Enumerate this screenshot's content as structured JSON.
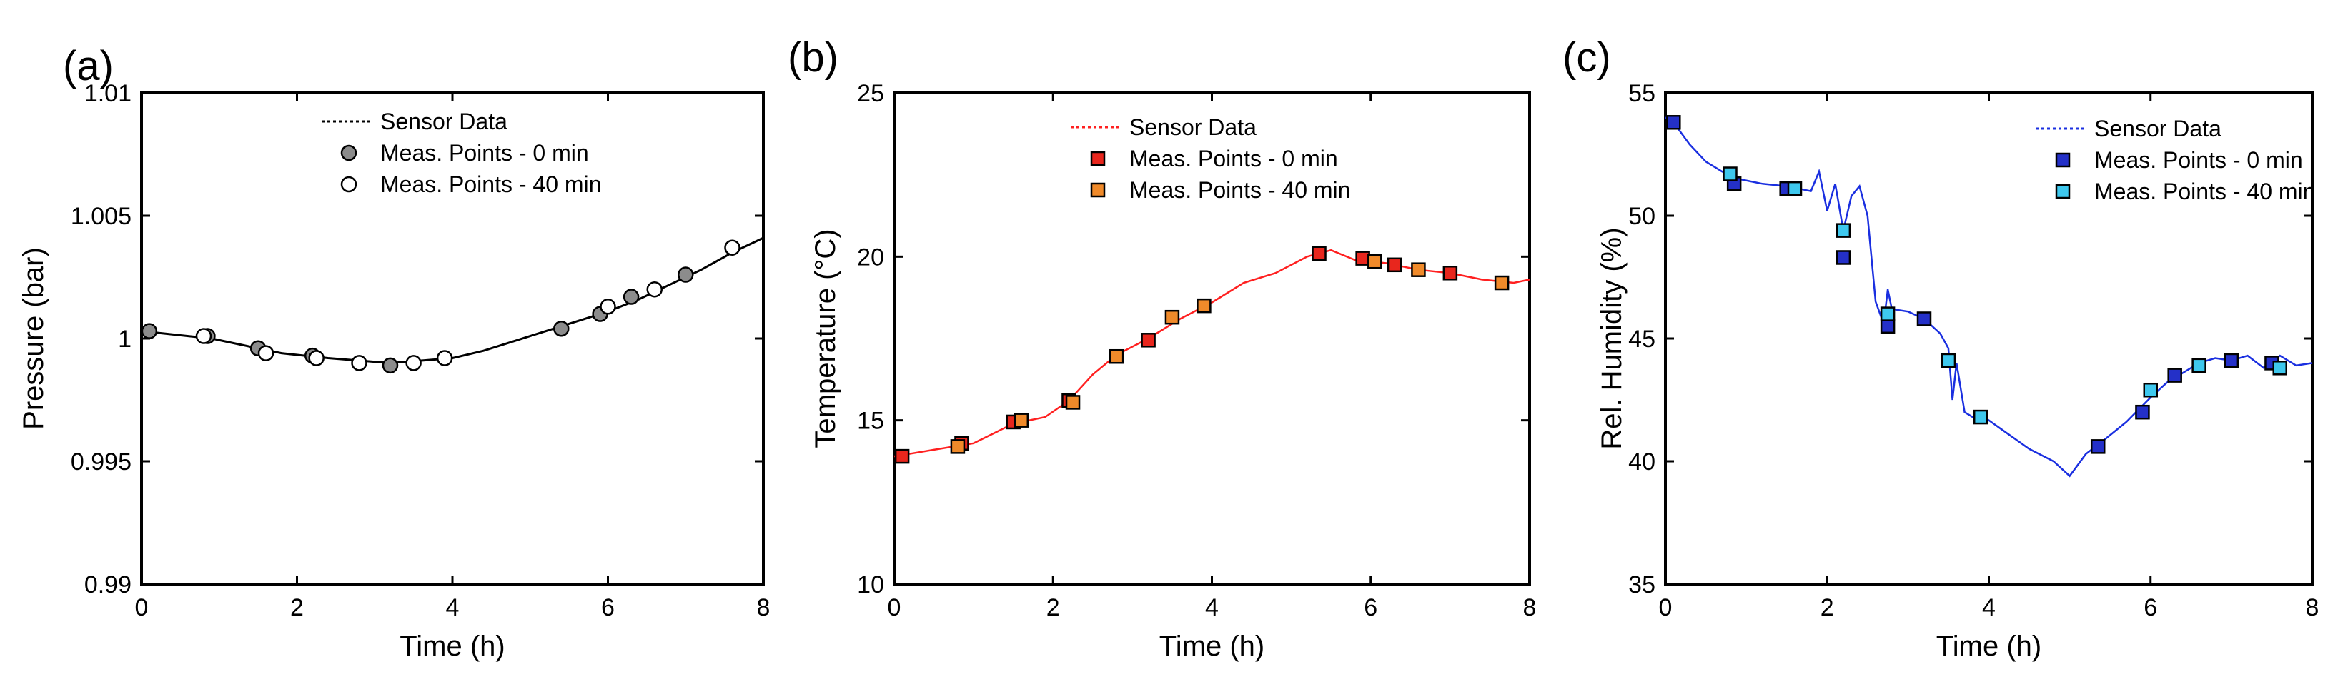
{
  "chart_data": [
    {
      "panel": "(a)",
      "type": "line+scatter",
      "xlabel": "Time (h)",
      "ylabel": "Pressure (bar)",
      "xlim": [
        0,
        8
      ],
      "ylim": [
        0.99,
        1.01
      ],
      "xticks": [
        "0",
        "2",
        "4",
        "6",
        "8"
      ],
      "yticks": [
        "0.99",
        "0.995",
        "1",
        "1.005",
        "1.01"
      ],
      "legend": [
        "Sensor Data",
        "Meas. Points - 0 min",
        "Meas. Points - 40 min"
      ],
      "colors": {
        "line": "#000000",
        "m0": "#8c8c8c",
        "m40": "#ffffff",
        "edge": "#000000"
      },
      "line": {
        "x": [
          -0.1,
          0,
          0.3,
          0.6,
          0.9,
          1.2,
          1.5,
          1.8,
          2.1,
          2.4,
          2.8,
          3.2,
          3.6,
          4.0,
          4.4,
          4.8,
          5.2,
          5.6,
          6.0,
          6.4,
          6.8,
          7.2,
          7.6,
          8.0
        ],
        "y": [
          1.0003,
          1.0003,
          1.0002,
          1.0001,
          1.0,
          0.9998,
          0.9996,
          0.9994,
          0.9993,
          0.9992,
          0.9991,
          0.999,
          0.9991,
          0.9992,
          0.9995,
          0.9999,
          1.0003,
          1.0007,
          1.0011,
          1.0016,
          1.0022,
          1.0028,
          1.0035,
          1.0041
        ]
      },
      "points_0min": {
        "x": [
          0.1,
          0.85,
          1.5,
          2.2,
          3.2,
          5.4,
          5.9,
          6.3,
          7.0
        ],
        "y": [
          1.0003,
          1.0001,
          0.9996,
          0.9993,
          0.9989,
          1.0004,
          1.001,
          1.0017,
          1.0026
        ]
      },
      "points_40min": {
        "x": [
          0.8,
          1.6,
          2.25,
          2.8,
          3.5,
          3.9,
          6.0,
          6.6,
          7.6
        ],
        "y": [
          1.0001,
          0.9994,
          0.9992,
          0.999,
          0.999,
          0.9992,
          1.0013,
          1.002,
          1.0037
        ]
      }
    },
    {
      "panel": "(b)",
      "type": "line+scatter",
      "xlabel": "Time (h)",
      "ylabel": "Temperature (°C)",
      "xlim": [
        0,
        8
      ],
      "ylim": [
        10,
        25
      ],
      "xticks": [
        "0",
        "2",
        "4",
        "6",
        "8"
      ],
      "yticks": [
        "10",
        "15",
        "20",
        "25"
      ],
      "legend": [
        "Sensor Data",
        "Meas. Points - 0 min",
        "Meas. Points - 40 min"
      ],
      "colors": {
        "line": "#ff2020",
        "m0": "#e8261d",
        "m40": "#f08a2a",
        "edge": "#000000"
      },
      "line": {
        "x": [
          -0.1,
          0,
          0.5,
          1.0,
          1.5,
          1.9,
          2.2,
          2.5,
          2.8,
          3.2,
          3.6,
          4.0,
          4.4,
          4.8,
          5.2,
          5.5,
          5.8,
          6.2,
          6.6,
          7.0,
          7.4,
          7.8,
          8.0
        ],
        "y": [
          13.9,
          13.9,
          14.1,
          14.3,
          14.9,
          15.1,
          15.6,
          16.4,
          17.0,
          17.5,
          18.1,
          18.6,
          19.2,
          19.5,
          20.0,
          20.2,
          19.9,
          19.8,
          19.6,
          19.5,
          19.3,
          19.2,
          19.3
        ]
      },
      "points_0min": {
        "x": [
          0.1,
          0.85,
          1.5,
          2.2,
          3.2,
          5.35,
          5.9,
          6.3,
          7.0
        ],
        "y": [
          13.9,
          14.3,
          14.95,
          15.6,
          17.45,
          20.1,
          19.95,
          19.75,
          19.5
        ]
      },
      "points_40min": {
        "x": [
          0.8,
          1.6,
          2.25,
          2.8,
          3.5,
          3.9,
          6.05,
          6.6,
          7.65
        ],
        "y": [
          14.2,
          15.0,
          15.55,
          16.95,
          18.15,
          18.5,
          19.85,
          19.6,
          19.2
        ]
      }
    },
    {
      "panel": "(c)",
      "type": "line+scatter",
      "xlabel": "Time (h)",
      "ylabel": "Rel. Humidity (%)",
      "xlim": [
        0,
        8
      ],
      "ylim": [
        35,
        55
      ],
      "xticks": [
        "0",
        "2",
        "4",
        "6",
        "8"
      ],
      "yticks": [
        "35",
        "40",
        "45",
        "50",
        "55"
      ],
      "legend": [
        "Sensor Data",
        "Meas. Points - 0 min",
        "Meas. Points - 40 min"
      ],
      "colors": {
        "line": "#1a2fe0",
        "m0": "#2430c8",
        "m40": "#3ec8ee",
        "edge": "#000000"
      },
      "line": {
        "x": [
          -0.1,
          0.1,
          0.3,
          0.5,
          0.7,
          0.9,
          1.2,
          1.5,
          1.8,
          1.9,
          2.0,
          2.1,
          2.2,
          2.3,
          2.4,
          2.5,
          2.6,
          2.7,
          2.75,
          2.8,
          3.0,
          3.2,
          3.4,
          3.5,
          3.55,
          3.6,
          3.7,
          3.8,
          3.9,
          4.2,
          4.5,
          4.8,
          5.0,
          5.2,
          5.4,
          5.7,
          6.0,
          6.2,
          6.4,
          6.6,
          6.8,
          7.0,
          7.2,
          7.4,
          7.6,
          7.8,
          8.0
        ],
        "y": [
          54.0,
          53.8,
          52.9,
          52.2,
          51.8,
          51.5,
          51.3,
          51.2,
          51.0,
          51.8,
          50.2,
          51.3,
          49.4,
          50.8,
          51.2,
          50.0,
          46.5,
          45.6,
          47.0,
          46.2,
          46.1,
          45.8,
          45.2,
          44.6,
          42.5,
          44.0,
          42.0,
          41.8,
          41.9,
          41.2,
          40.5,
          40.0,
          39.4,
          40.3,
          40.8,
          41.6,
          42.6,
          43.2,
          43.6,
          44.0,
          44.2,
          44.1,
          44.3,
          43.8,
          44.3,
          43.9,
          44.0
        ]
      },
      "points_0min": {
        "x": [
          0.1,
          0.85,
          1.5,
          2.2,
          2.75,
          3.2,
          5.35,
          5.9,
          6.3,
          7.0,
          7.5
        ],
        "y": [
          53.8,
          51.3,
          51.1,
          48.3,
          45.5,
          45.8,
          40.6,
          42.0,
          43.5,
          44.1,
          44.0
        ]
      },
      "points_40min": {
        "x": [
          0.8,
          1.6,
          2.2,
          2.75,
          3.5,
          3.9,
          6.0,
          6.6,
          7.6
        ],
        "y": [
          51.7,
          51.1,
          49.4,
          46.0,
          44.1,
          41.8,
          42.9,
          43.9,
          43.8
        ]
      }
    }
  ]
}
